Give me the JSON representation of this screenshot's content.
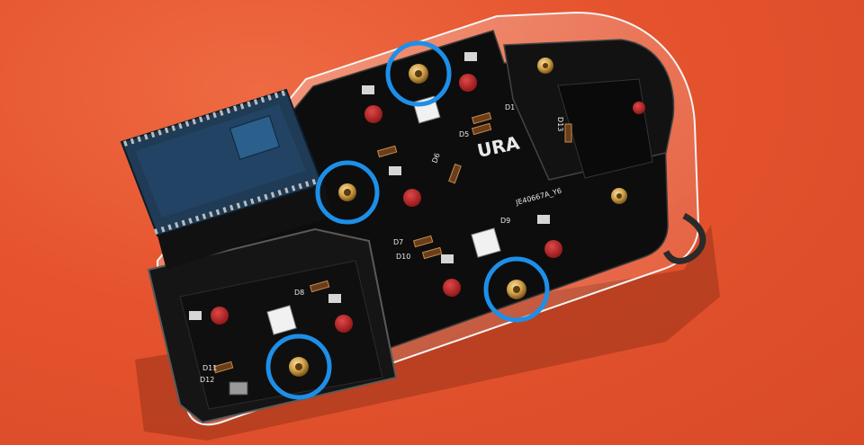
{
  "scene": {
    "board_label": "URA",
    "part_code": "JE40667A_Y6",
    "diode_labels": [
      "D1",
      "D5",
      "D6",
      "D7",
      "D8",
      "D9",
      "D10",
      "D11",
      "D12",
      "D13"
    ],
    "colors": {
      "background": "#e5532e",
      "pcb": "#0d0d0d",
      "microcontroller": "#1f3b55",
      "highlight_circle": "#1d8fe8",
      "switch_socket": "#c02424",
      "brass_standoff": "#d2a24a"
    },
    "highlight_count": 4
  }
}
